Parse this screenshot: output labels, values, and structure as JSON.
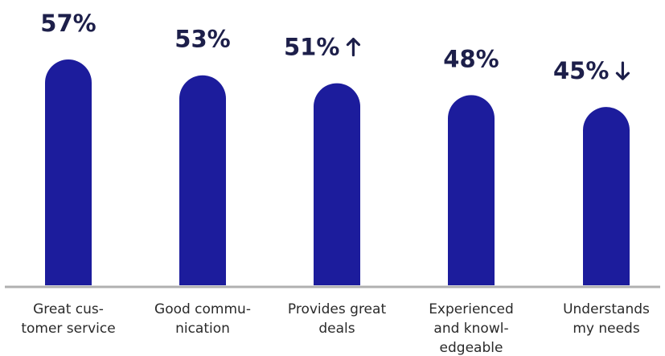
{
  "chart_data": {
    "type": "bar",
    "categories": [
      [
        "Great cus-",
        "tomer service"
      ],
      [
        "Good commu-",
        "nication"
      ],
      [
        "Provides great",
        "deals"
      ],
      [
        "Experienced",
        "and knowl-",
        "edgeable"
      ],
      [
        "Understands",
        "my needs"
      ]
    ],
    "values": [
      57,
      53,
      51,
      48,
      45
    ],
    "value_labels": [
      "57%",
      "53%",
      "51%",
      "48%",
      "45%"
    ],
    "trend": [
      "",
      "",
      "up",
      "",
      "down"
    ],
    "title": "",
    "xlabel": "",
    "ylabel": "",
    "ylim": [
      0,
      57
    ],
    "grid": false,
    "legend": "none"
  },
  "colors": {
    "bar": "#1c1c9c",
    "value_text": "#1d1f4a",
    "axis": "#b0b0b0",
    "category_text": "#2a2a2a"
  },
  "icons": {
    "up": "arrow-up-icon",
    "down": "arrow-down-icon"
  }
}
